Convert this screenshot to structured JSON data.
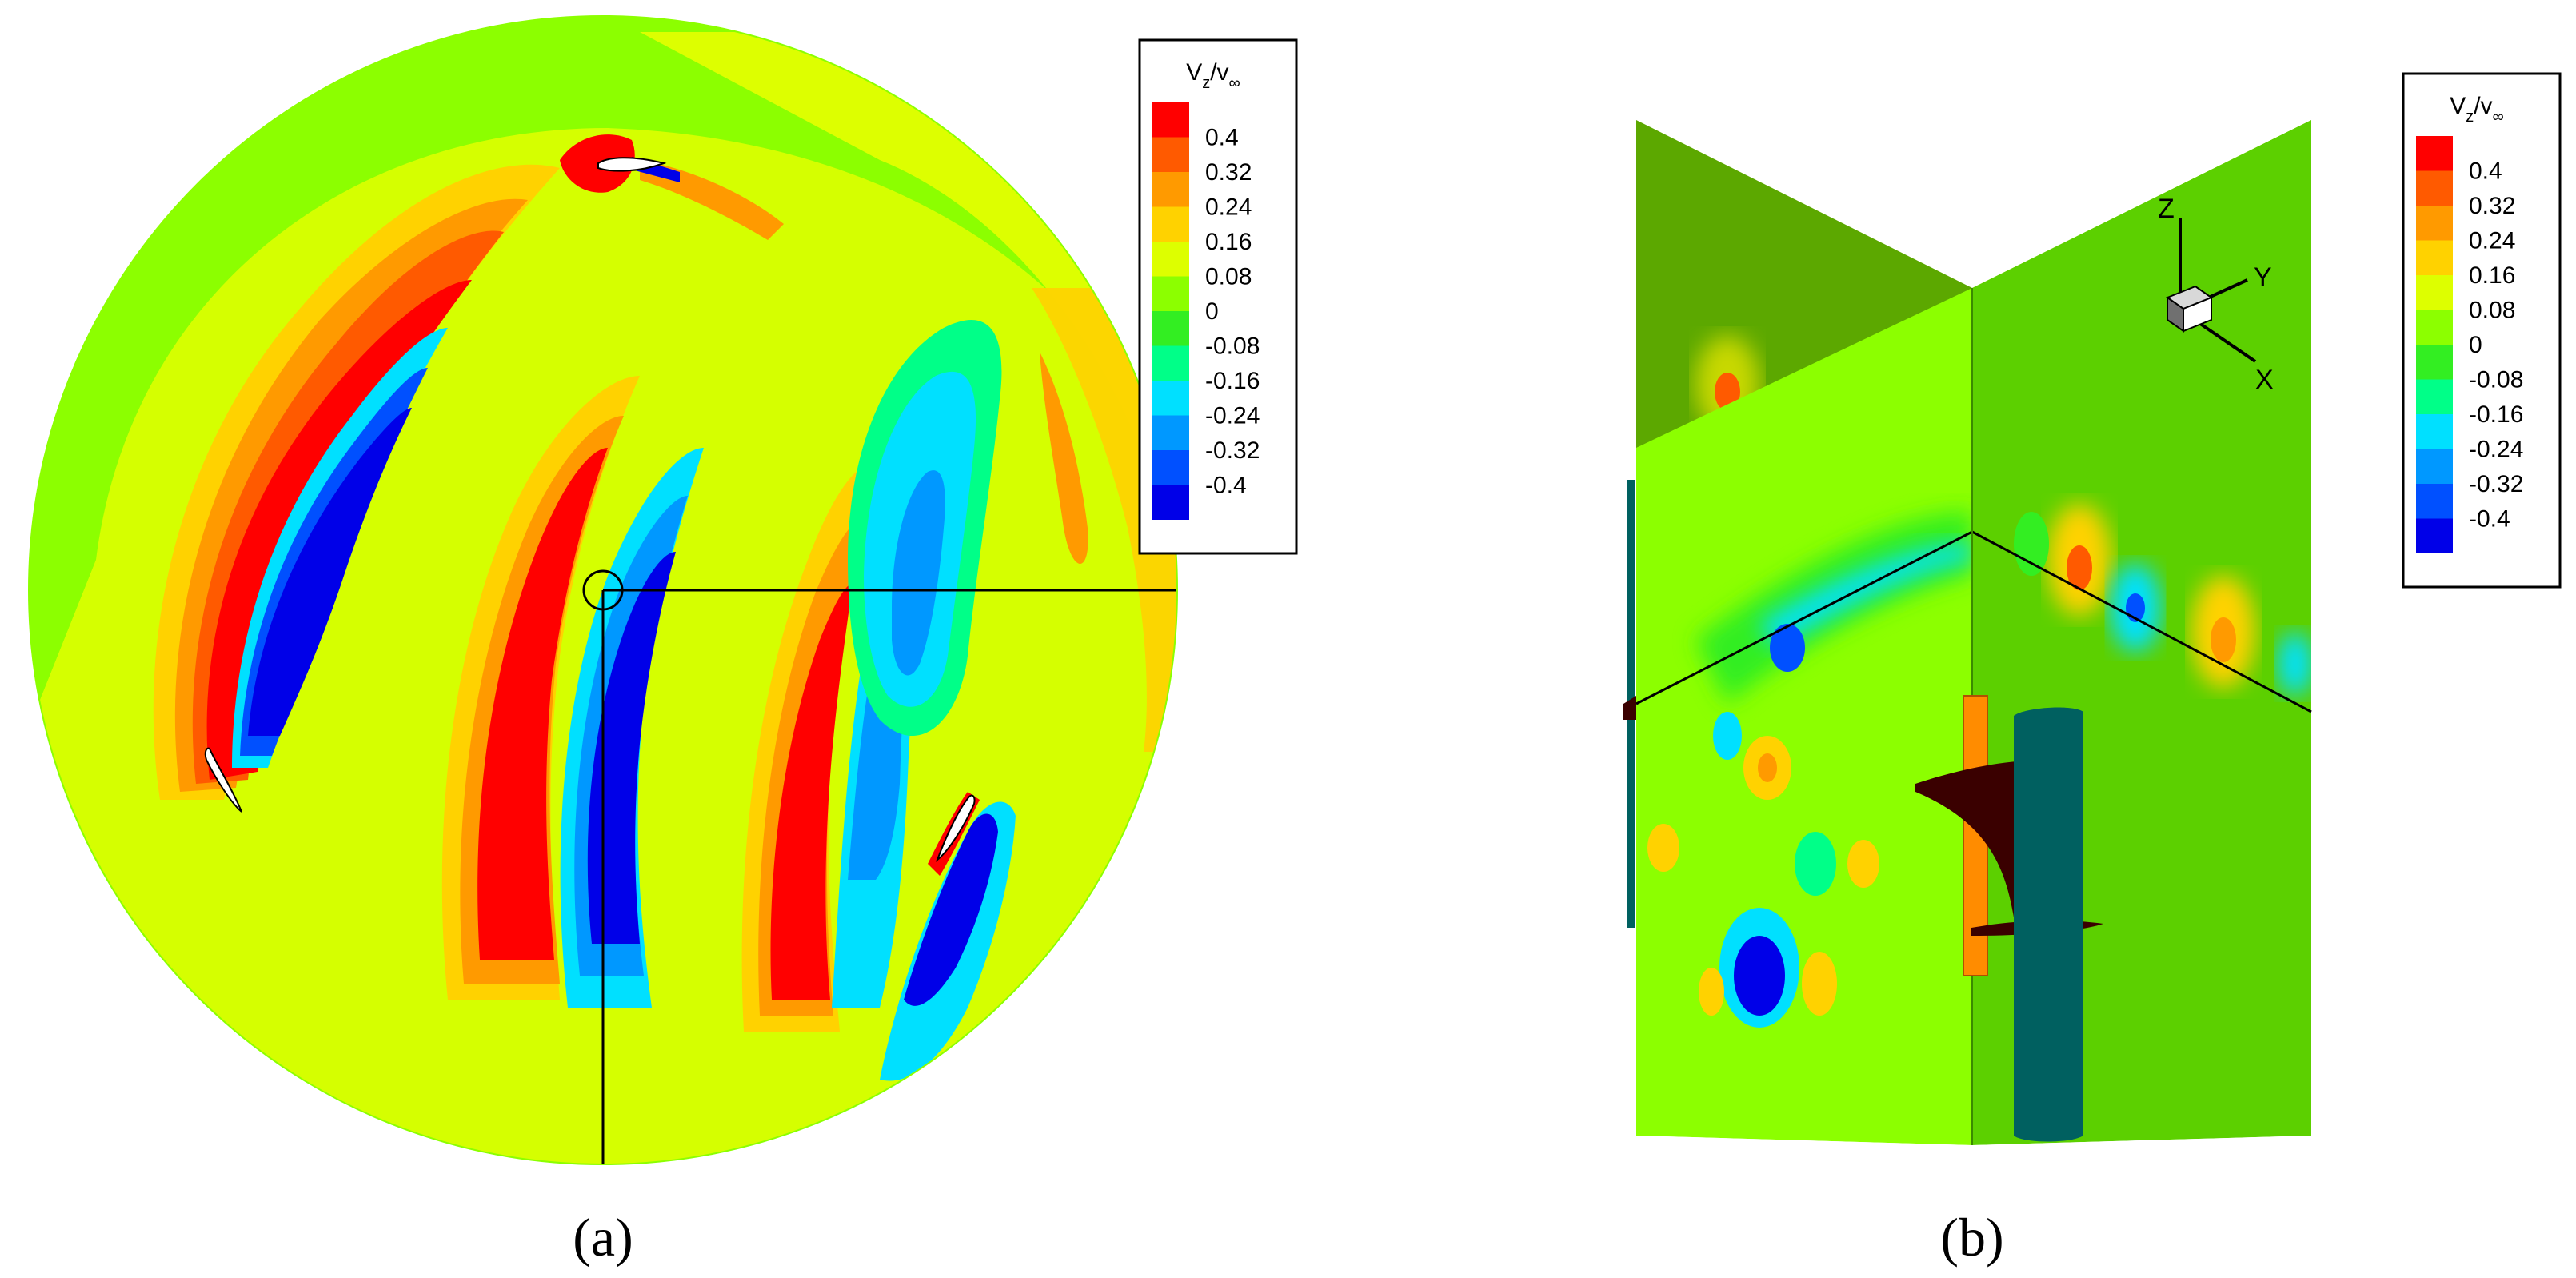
{
  "panels": [
    {
      "label": "(a)"
    },
    {
      "label": "(b)"
    }
  ],
  "legend": {
    "title_main": "V",
    "title_sub": "z",
    "title_rest": "/v",
    "title_inf": "∞",
    "levels": [
      "0.4",
      "0.32",
      "0.24",
      "0.16",
      "0.08",
      "0",
      "-0.08",
      "-0.16",
      "-0.24",
      "-0.32",
      "-0.4"
    ],
    "colors": [
      "#ff0000",
      "#ff5a00",
      "#ff9a00",
      "#ffd200",
      "#ddff00",
      "#8cff00",
      "#33ee22",
      "#00ff88",
      "#00e0ff",
      "#0098ff",
      "#0050ff",
      "#0000e8"
    ]
  },
  "triad": {
    "z": "Z",
    "y": "Y",
    "x": "X"
  },
  "colors": {
    "background_field": "#8cff00",
    "tower": "#006060",
    "blade_dark": "#3a0000",
    "shaft": "#ff8c00"
  }
}
